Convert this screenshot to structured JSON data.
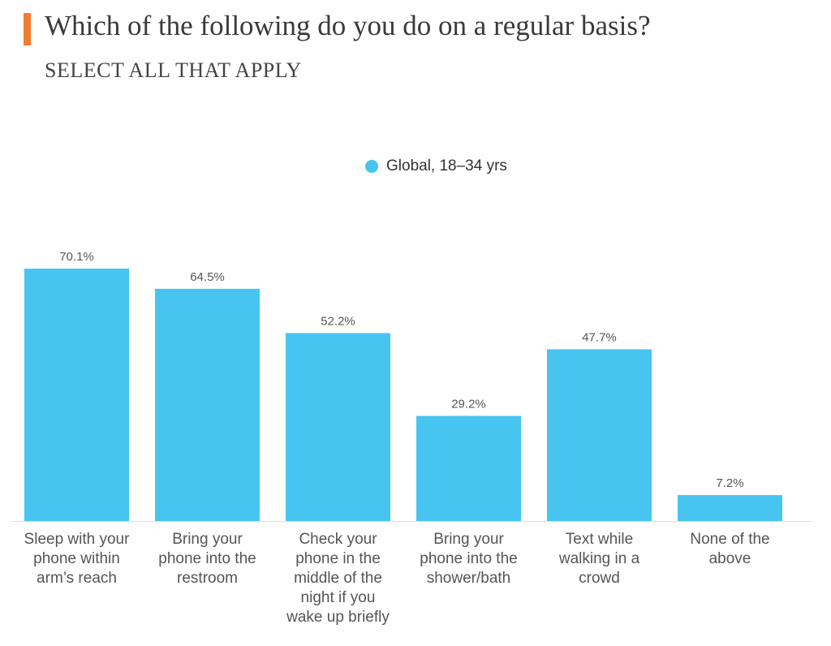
{
  "header": {
    "title": "Which of the following do you do on a regular basis?",
    "subtitle": "SELECT ALL THAT APPLY",
    "accent_color": "#f47c30"
  },
  "chart_data": {
    "type": "bar",
    "title": "Which of the following do you do on a regular basis?",
    "subtitle": "SELECT ALL THAT APPLY",
    "categories": [
      [
        "Sleep with your",
        "phone within",
        "arm’s reach"
      ],
      [
        "Bring your",
        "phone into the",
        "restroom"
      ],
      [
        "Check your",
        "phone in the",
        "middle of the",
        "night if you",
        "wake up briefly"
      ],
      [
        "Bring your",
        "phone into the",
        "shower/bath"
      ],
      [
        "Text while",
        "walking in a",
        "crowd"
      ],
      [
        "None of the",
        "above"
      ]
    ],
    "series": [
      {
        "name": "Global, 18–34 yrs",
        "color": "#47c5f0",
        "values": [
          70.1,
          64.5,
          52.2,
          29.2,
          47.7,
          7.2
        ],
        "value_labels": [
          "70.1%",
          "64.5%",
          "52.2%",
          "29.2%",
          "47.7%",
          "7.2%"
        ]
      }
    ],
    "xlabel": "",
    "ylabel": "",
    "ylim": [
      0,
      70.1
    ],
    "grid": false,
    "legend": "top-center",
    "axis_color": "#dddddd"
  }
}
